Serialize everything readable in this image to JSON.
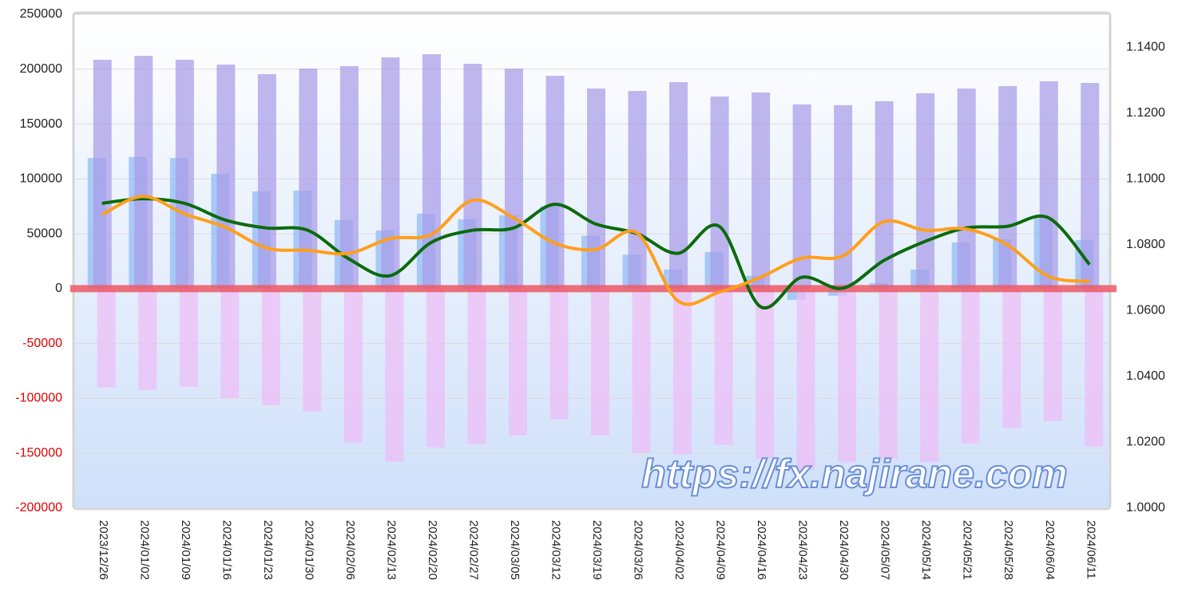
{
  "chart_data": {
    "type": "bar-line",
    "watermark": "https://fx.najirane.com",
    "categories": [
      "2023/12/26",
      "2024/01/02",
      "2024/01/09",
      "2024/01/16",
      "2024/01/23",
      "2024/01/30",
      "2024/02/06",
      "2024/02/13",
      "2024/02/20",
      "2024/02/27",
      "2024/03/05",
      "2024/03/12",
      "2024/03/19",
      "2024/03/26",
      "2024/04/02",
      "2024/04/09",
      "2024/04/16",
      "2024/04/23",
      "2024/04/30",
      "2024/05/07",
      "2024/05/14",
      "2024/05/21",
      "2024/05/28",
      "2024/06/04",
      "2024/06/11"
    ],
    "series": [
      {
        "kind": "bar",
        "color": "#8fbaf5",
        "values": [
          119000,
          120000,
          119000,
          104700,
          88700,
          89400,
          62500,
          53000,
          68300,
          63200,
          66900,
          75000,
          48300,
          31000,
          17400,
          33400,
          11600,
          -10200,
          -6500,
          5000,
          17400,
          42200,
          45000,
          65000,
          44300
        ]
      },
      {
        "kind": "bar",
        "color": "#a99be8",
        "values": [
          208600,
          212200,
          208600,
          204200,
          195500,
          200600,
          202800,
          210800,
          213700,
          204900,
          200600,
          194000,
          182400,
          180200,
          188200,
          175100,
          178800,
          167900,
          167200,
          170800,
          178100,
          182400,
          184600,
          189000,
          187500
        ]
      },
      {
        "kind": "bar",
        "color": "#eebdf7",
        "values": [
          -90100,
          -92300,
          -89400,
          -99600,
          -106100,
          -111900,
          -140300,
          -157700,
          -144600,
          -141700,
          -133700,
          -119200,
          -133700,
          -149700,
          -151000,
          -142400,
          -155000,
          -165000,
          -158000,
          -155000,
          -158000,
          -141000,
          -127200,
          -120600,
          -143900
        ]
      },
      {
        "kind": "line",
        "axis": "y2",
        "color": "#0b6b0b",
        "values": [
          1.0926,
          1.094,
          1.0926,
          1.0875,
          1.0851,
          1.0844,
          1.0757,
          1.0706,
          1.0807,
          1.0844,
          1.0851,
          1.0923,
          1.0863,
          1.0834,
          1.0774,
          1.0856,
          1.0612,
          1.0701,
          1.0668,
          1.0752,
          1.081,
          1.0851,
          1.0856,
          1.0882,
          1.074
        ]
      },
      {
        "kind": "line",
        "axis": "y2",
        "color": "#ff9f1c",
        "values": [
          1.0892,
          1.0947,
          1.0894,
          1.0853,
          1.079,
          1.0783,
          1.0774,
          1.0819,
          1.0831,
          1.0935,
          1.0882,
          1.0805,
          1.0786,
          1.0836,
          1.0629,
          1.0656,
          1.0701,
          1.0759,
          1.0766,
          1.087,
          1.0844,
          1.0848,
          1.08,
          1.0704,
          1.0689
        ]
      }
    ],
    "zero_line_color": "#ee5a66",
    "negative_tick_color": "#e00000",
    "ylim": [
      -200000,
      250000
    ],
    "yticks": [
      -200000,
      -150000,
      -100000,
      -50000,
      0,
      50000,
      100000,
      150000,
      200000,
      250000
    ],
    "y2lim": [
      1.0,
      1.15
    ],
    "y2ticks": [
      {
        "value": 1.0,
        "label": "1.0000"
      },
      {
        "value": 1.02,
        "label": "1.0200"
      },
      {
        "value": 1.04,
        "label": "1.0400"
      },
      {
        "value": 1.06,
        "label": "1.0600"
      },
      {
        "value": 1.08,
        "label": "1.0800"
      },
      {
        "value": 1.1,
        "label": "1.1000"
      },
      {
        "value": 1.12,
        "label": "1.1200"
      },
      {
        "value": 1.14,
        "label": "1.1400"
      }
    ],
    "grid": true
  }
}
